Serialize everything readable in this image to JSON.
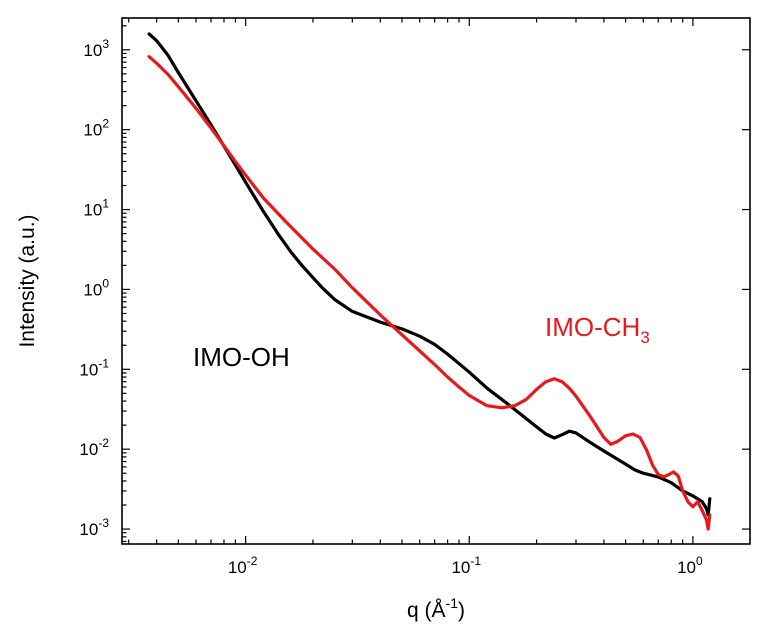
{
  "chart_data": {
    "type": "line",
    "xlabel": "q (Å",
    "xlabel_sup": "-1",
    "xlabel_end": ")",
    "ylabel": "Intensity (a.u.)",
    "x_scale": "log",
    "y_scale": "log",
    "xlim": [
      0.0028,
      1.8
    ],
    "ylim": [
      0.00065,
      2500
    ],
    "grid": false,
    "x_ticks": [
      {
        "value": 0.01,
        "base": "10",
        "exp": "-2"
      },
      {
        "value": 0.1,
        "base": "10",
        "exp": "-1"
      },
      {
        "value": 1,
        "base": "10",
        "exp": "0"
      }
    ],
    "y_ticks": [
      {
        "value": 0.001,
        "base": "10",
        "exp": "-3"
      },
      {
        "value": 0.01,
        "base": "10",
        "exp": "-2"
      },
      {
        "value": 0.1,
        "base": "10",
        "exp": "-1"
      },
      {
        "value": 1,
        "base": "10",
        "exp": "0"
      },
      {
        "value": 10,
        "base": "10",
        "exp": "1"
      },
      {
        "value": 100,
        "base": "10",
        "exp": "2"
      },
      {
        "value": 1000,
        "base": "10",
        "exp": "3"
      }
    ],
    "annotations": [
      {
        "series": 0,
        "text": "IMO-OH",
        "sub": ""
      },
      {
        "series": 1,
        "text": "IMO-CH",
        "sub": "3"
      }
    ],
    "series": [
      {
        "name": "IMO-OH",
        "color": "#000000",
        "points": [
          [
            0.0037,
            1580
          ],
          [
            0.004,
            1300
          ],
          [
            0.0045,
            850
          ],
          [
            0.005,
            520
          ],
          [
            0.006,
            230
          ],
          [
            0.007,
            115
          ],
          [
            0.008,
            62
          ],
          [
            0.009,
            36
          ],
          [
            0.01,
            22
          ],
          [
            0.012,
            9.5
          ],
          [
            0.014,
            4.9
          ],
          [
            0.016,
            2.9
          ],
          [
            0.018,
            1.95
          ],
          [
            0.02,
            1.4
          ],
          [
            0.022,
            1.05
          ],
          [
            0.025,
            0.75
          ],
          [
            0.03,
            0.53
          ],
          [
            0.035,
            0.45
          ],
          [
            0.04,
            0.39
          ],
          [
            0.05,
            0.32
          ],
          [
            0.06,
            0.26
          ],
          [
            0.07,
            0.205
          ],
          [
            0.08,
            0.155
          ],
          [
            0.1,
            0.092
          ],
          [
            0.12,
            0.058
          ],
          [
            0.15,
            0.036
          ],
          [
            0.18,
            0.024
          ],
          [
            0.2,
            0.019
          ],
          [
            0.22,
            0.0155
          ],
          [
            0.24,
            0.0138
          ],
          [
            0.26,
            0.0152
          ],
          [
            0.28,
            0.0168
          ],
          [
            0.3,
            0.016
          ],
          [
            0.35,
            0.012
          ],
          [
            0.4,
            0.0095
          ],
          [
            0.5,
            0.0065
          ],
          [
            0.55,
            0.0055
          ],
          [
            0.6,
            0.005
          ],
          [
            0.7,
            0.0045
          ],
          [
            0.8,
            0.0038
          ],
          [
            0.9,
            0.003
          ],
          [
            1.0,
            0.0026
          ],
          [
            1.1,
            0.0022
          ],
          [
            1.15,
            0.0018
          ],
          [
            1.17,
            0.0015
          ],
          [
            1.18,
            0.0019
          ],
          [
            1.19,
            0.0024
          ]
        ]
      },
      {
        "name": "IMO-CH3",
        "color": "#e8191c",
        "points": [
          [
            0.0037,
            820
          ],
          [
            0.004,
            680
          ],
          [
            0.0045,
            490
          ],
          [
            0.005,
            345
          ],
          [
            0.006,
            185
          ],
          [
            0.007,
            105
          ],
          [
            0.008,
            63
          ],
          [
            0.009,
            40
          ],
          [
            0.01,
            27
          ],
          [
            0.012,
            14
          ],
          [
            0.015,
            7.2
          ],
          [
            0.02,
            3.2
          ],
          [
            0.025,
            1.8
          ],
          [
            0.03,
            1.05
          ],
          [
            0.04,
            0.48
          ],
          [
            0.05,
            0.27
          ],
          [
            0.06,
            0.17
          ],
          [
            0.07,
            0.115
          ],
          [
            0.08,
            0.08
          ],
          [
            0.09,
            0.06
          ],
          [
            0.1,
            0.047
          ],
          [
            0.12,
            0.035
          ],
          [
            0.14,
            0.033
          ],
          [
            0.16,
            0.035
          ],
          [
            0.18,
            0.042
          ],
          [
            0.2,
            0.056
          ],
          [
            0.22,
            0.07
          ],
          [
            0.24,
            0.076
          ],
          [
            0.26,
            0.07
          ],
          [
            0.28,
            0.058
          ],
          [
            0.3,
            0.046
          ],
          [
            0.35,
            0.025
          ],
          [
            0.4,
            0.014
          ],
          [
            0.43,
            0.0115
          ],
          [
            0.46,
            0.0125
          ],
          [
            0.5,
            0.0147
          ],
          [
            0.54,
            0.0155
          ],
          [
            0.58,
            0.014
          ],
          [
            0.62,
            0.0098
          ],
          [
            0.66,
            0.0063
          ],
          [
            0.7,
            0.0048
          ],
          [
            0.74,
            0.0045
          ],
          [
            0.78,
            0.0048
          ],
          [
            0.82,
            0.0052
          ],
          [
            0.86,
            0.0046
          ],
          [
            0.9,
            0.003
          ],
          [
            0.95,
            0.0022
          ],
          [
            1.0,
            0.0019
          ],
          [
            1.05,
            0.0022
          ],
          [
            1.1,
            0.0017
          ],
          [
            1.15,
            0.0013
          ],
          [
            1.17,
            0.001
          ],
          [
            1.19,
            0.0015
          ]
        ]
      }
    ]
  }
}
